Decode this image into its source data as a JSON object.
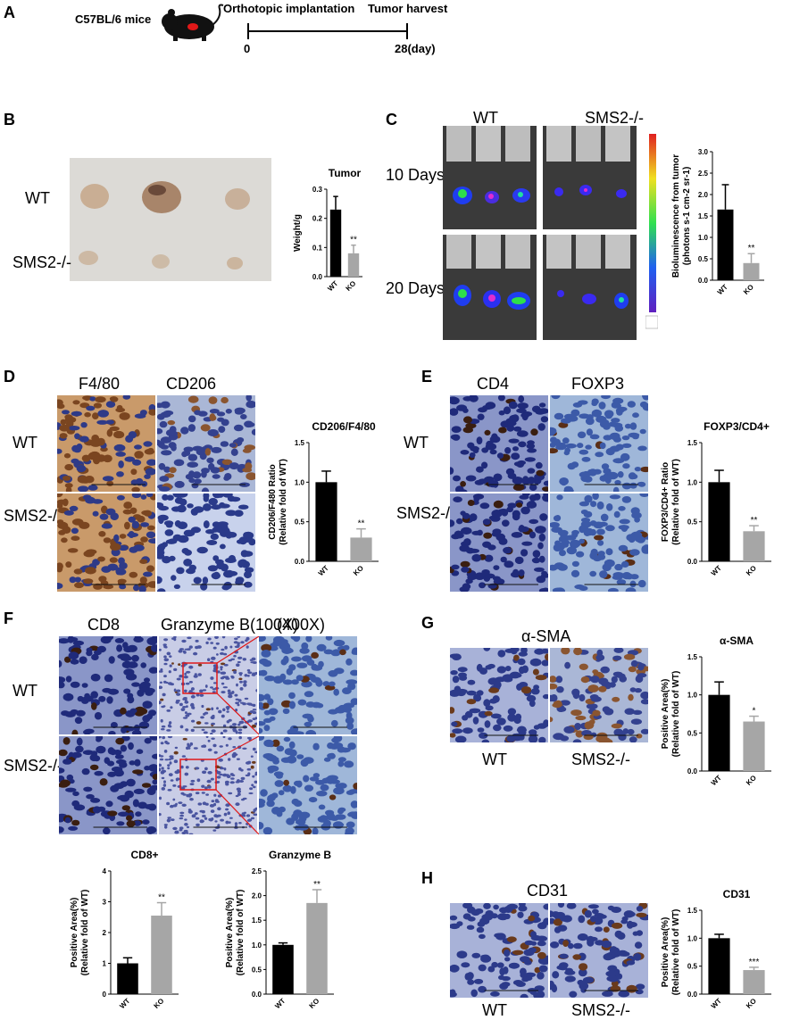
{
  "panelA": {
    "label": "A",
    "mice_label": "C57BL/6 mice",
    "step1": "Orthotopic implantation",
    "step2": "Tumor harvest",
    "start": "0",
    "end": "28(day)"
  },
  "panelB": {
    "label": "B",
    "row_wt": "WT",
    "row_ko": "SMS2-/-"
  },
  "panelC": {
    "label": "C",
    "col_wt": "WT",
    "col_ko": "SMS2-/-",
    "row_10": "10 Days",
    "row_20": "20 Days"
  },
  "panelD": {
    "label": "D",
    "col1": "F4/80",
    "col2": "CD206",
    "row_wt": "WT",
    "row_ko": "SMS2-/-"
  },
  "panelE": {
    "label": "E",
    "col1": "CD4",
    "col2": "FOXP3",
    "row_wt": "WT",
    "row_ko": "SMS2-/-"
  },
  "panelF": {
    "label": "F",
    "col1": "CD8",
    "col2": "Granzyme B(100X)",
    "col3": "(400X)",
    "row_wt": "WT",
    "row_ko": "SMS2-/-"
  },
  "panelG": {
    "label": "G",
    "col1": "α-SMA",
    "row_wt": "WT",
    "row_ko": "SMS2-/-"
  },
  "panelH": {
    "label": "H",
    "col1": "CD31",
    "row_wt": "WT",
    "row_ko": "SMS2-/-"
  },
  "chart_data": [
    {
      "id": "tumor",
      "type": "bar",
      "title": "Tumor",
      "xlabel": "",
      "ylabel": "Weight/g",
      "categories": [
        "WT",
        "KO"
      ],
      "values": [
        0.23,
        0.08
      ],
      "errors": [
        0.045,
        0.028
      ],
      "ylim": [
        0,
        0.3
      ],
      "yticks": [
        "0.0",
        "0.1",
        "0.2",
        "0.3"
      ],
      "sig": "**"
    },
    {
      "id": "biolum",
      "type": "bar",
      "title": "",
      "xlabel": "",
      "ylabel": "Bioluminescence from tumor",
      "ylabel2": "(photons s-1 cm-2 sr-1)",
      "categories": [
        "WT",
        "KO"
      ],
      "values": [
        1.65,
        0.4
      ],
      "errors": [
        0.58,
        0.22
      ],
      "ylim": [
        0,
        3.0
      ],
      "yticks": [
        "0.0",
        "0.5",
        "1.0",
        "1.5",
        "2.0",
        "2.5",
        "3.0"
      ],
      "sig": "**"
    },
    {
      "id": "cd206",
      "type": "bar",
      "title": "CD206/F4/80",
      "xlabel": "",
      "ylabel": "CD206/F480 Ratio",
      "ylabel2": "(Relative fold of WT)",
      "categories": [
        "WT",
        "KO"
      ],
      "values": [
        1.0,
        0.3
      ],
      "errors": [
        0.14,
        0.11
      ],
      "ylim": [
        0,
        1.5
      ],
      "yticks": [
        "0.0",
        "0.5",
        "1.0",
        "1.5"
      ],
      "sig": "**"
    },
    {
      "id": "foxp3",
      "type": "bar",
      "title": "FOXP3/CD4+",
      "xlabel": "",
      "ylabel": "FOXP3/CD4+ Ratio",
      "ylabel2": "(Relative fold of WT)",
      "categories": [
        "WT",
        "KO"
      ],
      "values": [
        1.0,
        0.38
      ],
      "errors": [
        0.15,
        0.07
      ],
      "ylim": [
        0,
        1.5
      ],
      "yticks": [
        "0.0",
        "0.5",
        "1.0",
        "1.5"
      ],
      "sig": "**"
    },
    {
      "id": "cd8",
      "type": "bar",
      "title": "CD8+",
      "xlabel": "",
      "ylabel": "Positive Area(%)",
      "ylabel2": "(Relative fold of WT)",
      "categories": [
        "WT",
        "KO"
      ],
      "values": [
        1.0,
        2.55
      ],
      "errors": [
        0.18,
        0.42
      ],
      "ylim": [
        0,
        4
      ],
      "yticks": [
        "0",
        "1",
        "2",
        "3",
        "4"
      ],
      "sig": "**"
    },
    {
      "id": "granzyme",
      "type": "bar",
      "title": "Granzyme B",
      "xlabel": "",
      "ylabel": "Positive Area(%)",
      "ylabel2": "(Relative fold of WT)",
      "categories": [
        "WT",
        "KO"
      ],
      "values": [
        1.0,
        1.85
      ],
      "errors": [
        0.04,
        0.27
      ],
      "ylim": [
        0,
        2.5
      ],
      "yticks": [
        "0.0",
        "0.5",
        "1.0",
        "1.5",
        "2.0",
        "2.5"
      ],
      "sig": "**"
    },
    {
      "id": "asma",
      "type": "bar",
      "title": "α-SMA",
      "xlabel": "",
      "ylabel": "Positive Area(%)",
      "ylabel2": "(Relative fold of WT)",
      "categories": [
        "WT",
        "KO"
      ],
      "values": [
        1.0,
        0.65
      ],
      "errors": [
        0.17,
        0.07
      ],
      "ylim": [
        0,
        1.5
      ],
      "yticks": [
        "0.0",
        "0.5",
        "1.0",
        "1.5"
      ],
      "sig": "*"
    },
    {
      "id": "cd31",
      "type": "bar",
      "title": "CD31",
      "xlabel": "",
      "ylabel": "Positive Area(%)",
      "ylabel2": "(Relative fold of WT)",
      "categories": [
        "WT",
        "KO"
      ],
      "values": [
        1.0,
        0.43
      ],
      "errors": [
        0.07,
        0.05
      ],
      "ylim": [
        0,
        1.5
      ],
      "yticks": [
        "0.0",
        "0.5",
        "1.0",
        "1.5"
      ],
      "sig": "***"
    }
  ]
}
